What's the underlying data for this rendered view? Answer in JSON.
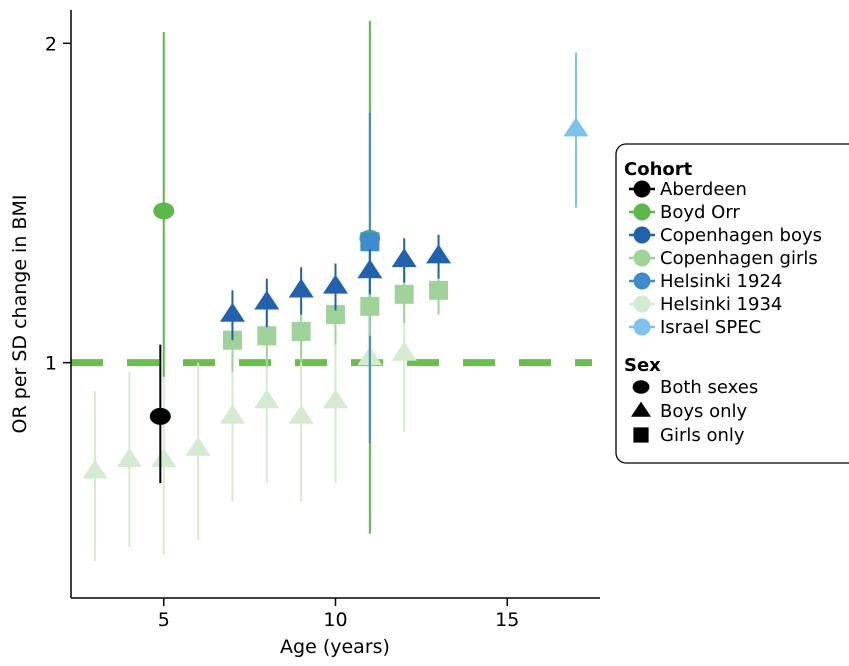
{
  "chart_data": {
    "type": "scatter",
    "title": "",
    "xlabel": "Age (years)",
    "ylabel": "OR per SD change in BMI",
    "xlim": [
      2.3,
      17.7
    ],
    "ylim": [
      0.6,
      2.15
    ],
    "y_scale": "log",
    "x_ticks": [
      5,
      10,
      15
    ],
    "y_ticks": [
      1,
      2
    ],
    "grid": false,
    "reference_line": {
      "y": 1,
      "style": "dashed",
      "color": "#6abf4b"
    },
    "legend": {
      "position": "right",
      "cohort_title": "Cohort",
      "cohorts": [
        {
          "key": "aberdeen",
          "label": "Aberdeen",
          "color": "#000000"
        },
        {
          "key": "boyd",
          "label": "Boyd Orr",
          "color": "#5cb84a"
        },
        {
          "key": "cph_boys",
          "label": "Copenhagen boys",
          "color": "#2162ae"
        },
        {
          "key": "cph_girls",
          "label": "Copenhagen girls",
          "color": "#9fd39a"
        },
        {
          "key": "h1924",
          "label": "Helsinki 1924",
          "color": "#3d8dcc"
        },
        {
          "key": "h1934",
          "label": "Helsinki 1934",
          "color": "#d5ebcf"
        },
        {
          "key": "israel",
          "label": "Israel SPEC",
          "color": "#7cc2ec"
        }
      ],
      "sex_title": "Sex",
      "sexes": [
        {
          "key": "both",
          "label": "Both sexes",
          "shape": "circle"
        },
        {
          "key": "boys",
          "label": "Boys only",
          "shape": "triangle"
        },
        {
          "key": "girls",
          "label": "Girls only",
          "shape": "square"
        }
      ]
    },
    "series": [
      {
        "name": "Helsinki 1934",
        "cohort": "h1934",
        "sex": "boys",
        "points": [
          {
            "x": 3,
            "y": 0.79,
            "lo": 0.65,
            "hi": 0.94
          },
          {
            "x": 4,
            "y": 0.81,
            "lo": 0.67,
            "hi": 0.98
          },
          {
            "x": 5,
            "y": 0.81,
            "lo": 0.66,
            "hi": 0.99
          },
          {
            "x": 6,
            "y": 0.83,
            "lo": 0.68,
            "hi": 1.0
          },
          {
            "x": 7,
            "y": 0.89,
            "lo": 0.74,
            "hi": 1.06
          },
          {
            "x": 8,
            "y": 0.92,
            "lo": 0.77,
            "hi": 1.1
          },
          {
            "x": 9,
            "y": 0.89,
            "lo": 0.74,
            "hi": 1.07
          },
          {
            "x": 10,
            "y": 0.92,
            "lo": 0.77,
            "hi": 1.1
          },
          {
            "x": 11,
            "y": 1.01,
            "lo": 0.85,
            "hi": 1.19
          },
          {
            "x": 12,
            "y": 1.02,
            "lo": 0.86,
            "hi": 1.2
          }
        ]
      },
      {
        "name": "Aberdeen",
        "cohort": "aberdeen",
        "sex": "both",
        "points": [
          {
            "x": 4.9,
            "y": 0.89,
            "lo": 0.77,
            "hi": 1.04
          }
        ]
      },
      {
        "name": "Boyd Orr",
        "cohort": "boyd",
        "sex": "both",
        "points": [
          {
            "x": 5,
            "y": 1.39,
            "lo": 0.97,
            "hi": 2.05
          },
          {
            "x": 11,
            "y": 1.31,
            "lo": 0.69,
            "hi": 2.1
          }
        ]
      },
      {
        "name": "Helsinki 1924",
        "cohort": "h1924",
        "sex": "girls",
        "points": [
          {
            "x": 11,
            "y": 1.3,
            "lo": 0.84,
            "hi": 1.72
          }
        ]
      },
      {
        "name": "Copenhagen girls",
        "cohort": "cph_girls",
        "sex": "girls",
        "points": [
          {
            "x": 7,
            "y": 1.05,
            "lo": 0.98,
            "hi": 1.12
          },
          {
            "x": 8,
            "y": 1.06,
            "lo": 0.99,
            "hi": 1.13
          },
          {
            "x": 9,
            "y": 1.07,
            "lo": 1.0,
            "hi": 1.14
          },
          {
            "x": 10,
            "y": 1.11,
            "lo": 1.04,
            "hi": 1.18
          },
          {
            "x": 11,
            "y": 1.13,
            "lo": 1.06,
            "hi": 1.2
          },
          {
            "x": 12,
            "y": 1.16,
            "lo": 1.09,
            "hi": 1.23
          },
          {
            "x": 13,
            "y": 1.17,
            "lo": 1.11,
            "hi": 1.24
          }
        ]
      },
      {
        "name": "Copenhagen boys",
        "cohort": "cph_boys",
        "sex": "boys",
        "points": [
          {
            "x": 7,
            "y": 1.11,
            "lo": 1.05,
            "hi": 1.17
          },
          {
            "x": 8,
            "y": 1.14,
            "lo": 1.08,
            "hi": 1.2
          },
          {
            "x": 9,
            "y": 1.17,
            "lo": 1.11,
            "hi": 1.23
          },
          {
            "x": 10,
            "y": 1.18,
            "lo": 1.12,
            "hi": 1.24
          },
          {
            "x": 11,
            "y": 1.22,
            "lo": 1.16,
            "hi": 1.28
          },
          {
            "x": 12,
            "y": 1.25,
            "lo": 1.19,
            "hi": 1.31
          },
          {
            "x": 13,
            "y": 1.26,
            "lo": 1.2,
            "hi": 1.32
          }
        ]
      },
      {
        "name": "Israel SPEC",
        "cohort": "israel",
        "sex": "boys",
        "points": [
          {
            "x": 17,
            "y": 1.66,
            "lo": 1.4,
            "hi": 1.96
          }
        ]
      }
    ]
  }
}
